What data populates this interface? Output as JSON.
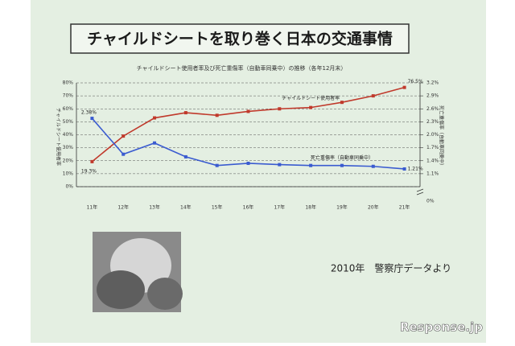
{
  "chart_data": {
    "type": "line",
    "title": "チャイルドシートを取り巻く日本の交通事情",
    "subtitle": "チャイルドシート使用者率及び死亡重傷率（自動車同乗中）の推移（各年12月末）",
    "ylabel": "チャイルドシート使用者率",
    "y2label": "死亡重傷率（自動車同乗中）",
    "categories": [
      "11年",
      "12年",
      "13年",
      "14年",
      "15年",
      "16年",
      "17年",
      "18年",
      "19年",
      "20年",
      "21年"
    ],
    "series": [
      {
        "name": "チャイルドシート使用者率",
        "color": "#c0392b",
        "axis": "y",
        "values": [
          19.3,
          39,
          53,
          57,
          55,
          58,
          60,
          61,
          65,
          70,
          76.5
        ],
        "value_labels": [
          "19.3%",
          null,
          null,
          null,
          null,
          null,
          null,
          null,
          null,
          null,
          "76.5%"
        ]
      },
      {
        "name": "死亡重傷率（自動車同乗中）",
        "color": "#3a5bd0",
        "axis": "y2",
        "values": [
          2.38,
          1.55,
          1.81,
          1.49,
          1.29,
          1.34,
          1.31,
          1.29,
          1.29,
          1.27,
          1.21
        ],
        "value_labels": [
          "2.38%",
          null,
          null,
          null,
          null,
          null,
          null,
          null,
          null,
          null,
          "1.21%"
        ]
      }
    ],
    "ylim": [
      0,
      80
    ],
    "yticks": [
      {
        "value": 0,
        "label": "0%"
      },
      {
        "value": 10,
        "label": "10%"
      },
      {
        "value": 20,
        "label": "20%"
      },
      {
        "value": 30,
        "label": "30%"
      },
      {
        "value": 40,
        "label": "40%"
      },
      {
        "value": 50,
        "label": "50%"
      },
      {
        "value": 60,
        "label": "60%"
      },
      {
        "value": 70,
        "label": "70%"
      },
      {
        "value": 80,
        "label": "80%"
      }
    ],
    "y2lim": [
      0.8,
      3.2
    ],
    "y2ticks": [
      {
        "value": 1.1,
        "label": "1.1%"
      },
      {
        "value": 1.4,
        "label": "1.4%"
      },
      {
        "value": 1.7,
        "label": "1.7%"
      },
      {
        "value": 2.0,
        "label": "2.0%"
      },
      {
        "value": 2.3,
        "label": "2.3%"
      },
      {
        "value": 2.6,
        "label": "2.6%"
      },
      {
        "value": 2.9,
        "label": "2.9%"
      },
      {
        "value": 3.2,
        "label": "3.2%"
      }
    ],
    "y2_origin_label": "0%",
    "grid": true,
    "source": "2010年　警察庁データより",
    "watermark": "Response.jp"
  }
}
